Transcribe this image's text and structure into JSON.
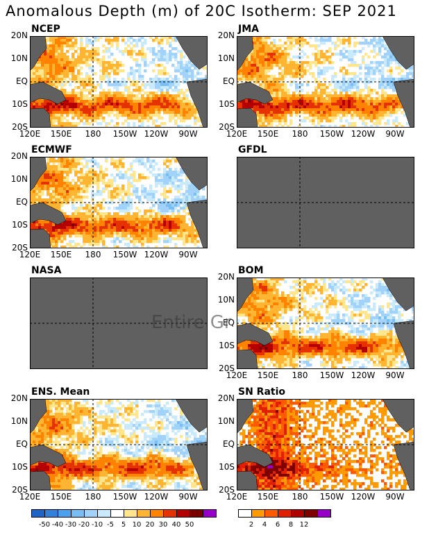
{
  "title": "Anomalous Depth (m) of 20C Isotherm: SEP 2021",
  "lat_labels": [
    "20N",
    "10N",
    "EQ",
    "10S",
    "20S"
  ],
  "lon_labels": [
    "120E",
    "150E",
    "180",
    "150W",
    "120W",
    "90W"
  ],
  "overlay_text": "Entire Gr",
  "panels": [
    {
      "name": "NCEP",
      "missing": false
    },
    {
      "name": "JMA",
      "missing": false
    },
    {
      "name": "ECMWF",
      "missing": false
    },
    {
      "name": "GFDL",
      "missing": true
    },
    {
      "name": "NASA",
      "missing": true
    },
    {
      "name": "BOM",
      "missing": false
    },
    {
      "name": "ENS. Mean",
      "missing": false
    },
    {
      "name": "SN Ratio",
      "missing": false
    }
  ],
  "colorbar_anomaly": {
    "labels": [
      "-50",
      "-40",
      "-30",
      "-20",
      "-10",
      "-5",
      "5",
      "10",
      "20",
      "30",
      "40",
      "50"
    ],
    "colors": [
      "#1e64c8",
      "#3282dc",
      "#4ba0f0",
      "#78bef5",
      "#a0d2fa",
      "#c8eafa",
      "#ffffff",
      "#ffe68c",
      "#ffb432",
      "#ff8200",
      "#e63200",
      "#b40000",
      "#7a0000",
      "#9600c8"
    ]
  },
  "colorbar_snr": {
    "labels": [
      "2",
      "4",
      "6",
      "8",
      "12"
    ],
    "colors": [
      "#ffffff",
      "#ff9a00",
      "#ff5a00",
      "#e02000",
      "#b00000",
      "#800000",
      "#9600c8"
    ]
  }
}
